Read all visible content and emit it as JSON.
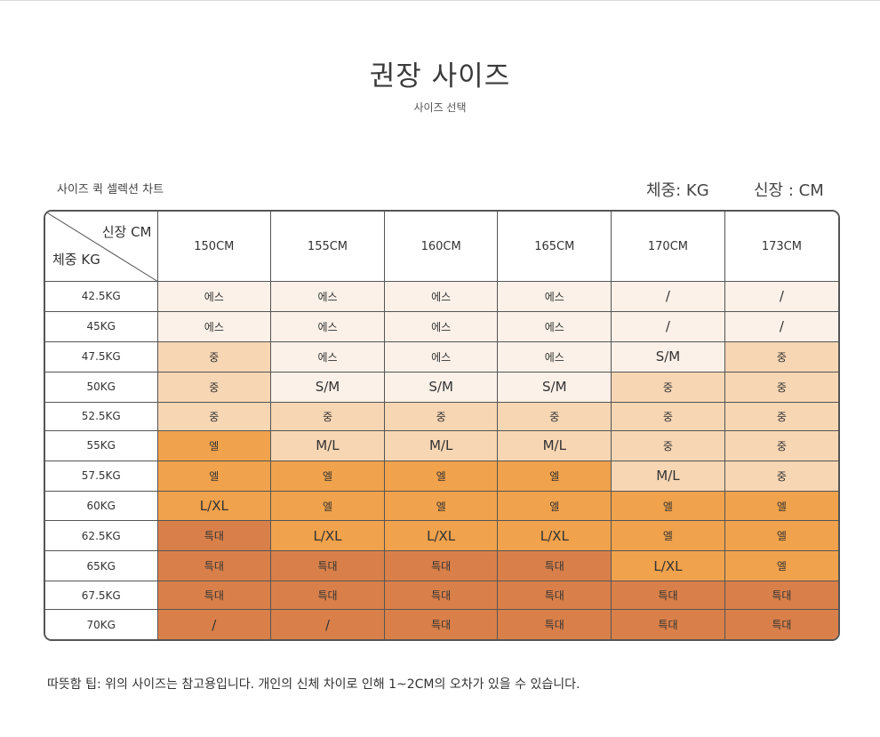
{
  "title": "권장 사이즈",
  "subtitle": "사이즈 선택",
  "chart_label": "사이즈 퀵 셀렉션 차트",
  "unit_weight": "체중: KG",
  "unit_height": "신장 : CM",
  "corner": {
    "height_label": "신장 CM",
    "weight_label": "체중 KG"
  },
  "heights": [
    "150CM",
    "155CM",
    "160CM",
    "165CM",
    "170CM",
    "173CM"
  ],
  "rows": [
    {
      "weight": "42.5KG",
      "sizes": [
        "에스",
        "에스",
        "에스",
        "에스",
        "/",
        "/"
      ],
      "levels": [
        1,
        1,
        1,
        1,
        1,
        1
      ]
    },
    {
      "weight": "45KG",
      "sizes": [
        "에스",
        "에스",
        "에스",
        "에스",
        "/",
        "/"
      ],
      "levels": [
        1,
        1,
        1,
        1,
        1,
        1
      ]
    },
    {
      "weight": "47.5KG",
      "sizes": [
        "중",
        "에스",
        "에스",
        "에스",
        "S/M",
        "중"
      ],
      "levels": [
        2,
        1,
        1,
        1,
        1,
        2
      ]
    },
    {
      "weight": "50KG",
      "sizes": [
        "중",
        "S/M",
        "S/M",
        "S/M",
        "중",
        "중"
      ],
      "levels": [
        2,
        1,
        1,
        1,
        2,
        2
      ]
    },
    {
      "weight": "52.5KG",
      "sizes": [
        "중",
        "중",
        "중",
        "중",
        "중",
        "중"
      ],
      "levels": [
        2,
        2,
        2,
        2,
        2,
        2
      ]
    },
    {
      "weight": "55KG",
      "sizes": [
        "엘",
        "M/L",
        "M/L",
        "M/L",
        "중",
        "중"
      ],
      "levels": [
        3,
        2,
        2,
        2,
        2,
        2
      ]
    },
    {
      "weight": "57.5KG",
      "sizes": [
        "엘",
        "엘",
        "엘",
        "엘",
        "M/L",
        "중"
      ],
      "levels": [
        3,
        3,
        3,
        3,
        2,
        2
      ]
    },
    {
      "weight": "60KG",
      "sizes": [
        "L/XL",
        "엘",
        "엘",
        "엘",
        "엘",
        "엘"
      ],
      "levels": [
        3,
        3,
        3,
        3,
        3,
        3
      ]
    },
    {
      "weight": "62.5KG",
      "sizes": [
        "특대",
        "L/XL",
        "L/XL",
        "L/XL",
        "엘",
        "엘"
      ],
      "levels": [
        4,
        3,
        3,
        3,
        3,
        3
      ]
    },
    {
      "weight": "65KG",
      "sizes": [
        "특대",
        "특대",
        "특대",
        "특대",
        "L/XL",
        "엘"
      ],
      "levels": [
        4,
        4,
        4,
        4,
        3,
        3
      ]
    },
    {
      "weight": "67.5KG",
      "sizes": [
        "특대",
        "특대",
        "특대",
        "특대",
        "특대",
        "특대"
      ],
      "levels": [
        4,
        4,
        4,
        4,
        4,
        4
      ]
    },
    {
      "weight": "70KG",
      "sizes": [
        "/",
        "/",
        "특대",
        "특대",
        "특대",
        "특대"
      ],
      "levels": [
        4,
        4,
        4,
        4,
        4,
        4
      ]
    }
  ],
  "level_colors": {
    "1": "#fbf1e8",
    "2": "#f7d6b4",
    "3": "#f0a24c",
    "4": "#d9804a"
  },
  "tip": "따뜻함 팁: 위의 사이즈는 참고용입니다. 개인의 신체 차이로 인해 1~2CM의 오차가 있을 수 있습니다."
}
